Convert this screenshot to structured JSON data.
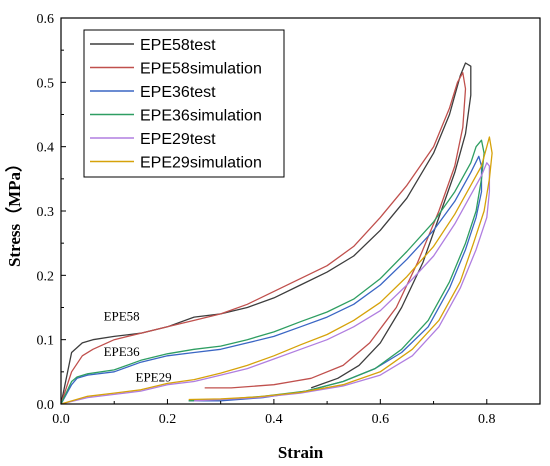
{
  "chart_data": {
    "type": "line",
    "xlabel": "Strain",
    "ylabel": "Stress（MPa）",
    "xlim": [
      0,
      0.9
    ],
    "ylim": [
      0,
      0.6
    ],
    "xticks": [
      "0.0",
      "0.2",
      "0.4",
      "0.6",
      "0.8"
    ],
    "yticks": [
      "0.0",
      "0.1",
      "0.2",
      "0.3",
      "0.4",
      "0.5",
      "0.6"
    ],
    "grid": false,
    "legend_position": "top-left",
    "annotations": [
      {
        "text": "EPE58",
        "x": 0.08,
        "y": 0.13
      },
      {
        "text": "EPE36",
        "x": 0.08,
        "y": 0.075
      },
      {
        "text": "EPE29",
        "x": 0.14,
        "y": 0.035
      }
    ],
    "series": [
      {
        "name": "EPE58test",
        "color": "#3d3d3d",
        "points": [
          [
            0,
            0
          ],
          [
            0.02,
            0.08
          ],
          [
            0.04,
            0.095
          ],
          [
            0.06,
            0.1
          ],
          [
            0.1,
            0.105
          ],
          [
            0.15,
            0.11
          ],
          [
            0.2,
            0.12
          ],
          [
            0.25,
            0.135
          ],
          [
            0.3,
            0.14
          ],
          [
            0.35,
            0.15
          ],
          [
            0.4,
            0.165
          ],
          [
            0.45,
            0.185
          ],
          [
            0.5,
            0.205
          ],
          [
            0.55,
            0.23
          ],
          [
            0.6,
            0.27
          ],
          [
            0.65,
            0.32
          ],
          [
            0.7,
            0.39
          ],
          [
            0.73,
            0.45
          ],
          [
            0.75,
            0.51
          ],
          [
            0.76,
            0.53
          ],
          [
            0.77,
            0.525
          ],
          [
            0.77,
            0.48
          ],
          [
            0.76,
            0.42
          ],
          [
            0.74,
            0.36
          ],
          [
            0.71,
            0.29
          ],
          [
            0.68,
            0.22
          ],
          [
            0.64,
            0.15
          ],
          [
            0.6,
            0.095
          ],
          [
            0.56,
            0.06
          ],
          [
            0.52,
            0.04
          ],
          [
            0.47,
            0.025
          ]
        ]
      },
      {
        "name": "EPE58simulation",
        "color": "#c0504d",
        "points": [
          [
            0,
            0
          ],
          [
            0.02,
            0.05
          ],
          [
            0.04,
            0.075
          ],
          [
            0.06,
            0.085
          ],
          [
            0.1,
            0.1
          ],
          [
            0.15,
            0.11
          ],
          [
            0.2,
            0.12
          ],
          [
            0.25,
            0.13
          ],
          [
            0.3,
            0.14
          ],
          [
            0.35,
            0.155
          ],
          [
            0.4,
            0.175
          ],
          [
            0.45,
            0.195
          ],
          [
            0.5,
            0.215
          ],
          [
            0.55,
            0.245
          ],
          [
            0.6,
            0.29
          ],
          [
            0.65,
            0.34
          ],
          [
            0.7,
            0.4
          ],
          [
            0.73,
            0.46
          ],
          [
            0.745,
            0.5
          ],
          [
            0.755,
            0.515
          ],
          [
            0.76,
            0.49
          ],
          [
            0.755,
            0.43
          ],
          [
            0.74,
            0.37
          ],
          [
            0.71,
            0.3
          ],
          [
            0.67,
            0.22
          ],
          [
            0.63,
            0.15
          ],
          [
            0.58,
            0.095
          ],
          [
            0.53,
            0.06
          ],
          [
            0.47,
            0.04
          ],
          [
            0.4,
            0.03
          ],
          [
            0.32,
            0.025
          ],
          [
            0.27,
            0.025
          ]
        ]
      },
      {
        "name": "EPE36test",
        "color": "#3a66c4",
        "points": [
          [
            0,
            0
          ],
          [
            0.02,
            0.03
          ],
          [
            0.03,
            0.04
          ],
          [
            0.05,
            0.045
          ],
          [
            0.1,
            0.05
          ],
          [
            0.15,
            0.065
          ],
          [
            0.2,
            0.075
          ],
          [
            0.25,
            0.08
          ],
          [
            0.3,
            0.085
          ],
          [
            0.35,
            0.095
          ],
          [
            0.4,
            0.105
          ],
          [
            0.45,
            0.12
          ],
          [
            0.5,
            0.135
          ],
          [
            0.55,
            0.155
          ],
          [
            0.6,
            0.185
          ],
          [
            0.65,
            0.225
          ],
          [
            0.7,
            0.27
          ],
          [
            0.74,
            0.315
          ],
          [
            0.77,
            0.36
          ],
          [
            0.785,
            0.385
          ],
          [
            0.79,
            0.37
          ],
          [
            0.79,
            0.33
          ],
          [
            0.78,
            0.29
          ],
          [
            0.76,
            0.24
          ],
          [
            0.73,
            0.18
          ],
          [
            0.69,
            0.12
          ],
          [
            0.64,
            0.08
          ],
          [
            0.59,
            0.055
          ],
          [
            0.53,
            0.035
          ],
          [
            0.46,
            0.02
          ],
          [
            0.38,
            0.01
          ],
          [
            0.3,
            0.005
          ],
          [
            0.24,
            0.005
          ]
        ]
      },
      {
        "name": "EPE36simulation",
        "color": "#2e9e62",
        "points": [
          [
            0,
            0
          ],
          [
            0.02,
            0.035
          ],
          [
            0.03,
            0.042
          ],
          [
            0.05,
            0.047
          ],
          [
            0.1,
            0.053
          ],
          [
            0.15,
            0.068
          ],
          [
            0.2,
            0.078
          ],
          [
            0.25,
            0.085
          ],
          [
            0.3,
            0.09
          ],
          [
            0.35,
            0.1
          ],
          [
            0.4,
            0.112
          ],
          [
            0.45,
            0.128
          ],
          [
            0.5,
            0.143
          ],
          [
            0.55,
            0.163
          ],
          [
            0.6,
            0.195
          ],
          [
            0.65,
            0.237
          ],
          [
            0.7,
            0.283
          ],
          [
            0.74,
            0.33
          ],
          [
            0.77,
            0.375
          ],
          [
            0.78,
            0.4
          ],
          [
            0.79,
            0.41
          ],
          [
            0.795,
            0.39
          ],
          [
            0.79,
            0.35
          ],
          [
            0.78,
            0.3
          ],
          [
            0.76,
            0.25
          ],
          [
            0.73,
            0.19
          ],
          [
            0.69,
            0.13
          ],
          [
            0.64,
            0.085
          ],
          [
            0.59,
            0.055
          ],
          [
            0.53,
            0.035
          ],
          [
            0.46,
            0.02
          ],
          [
            0.38,
            0.012
          ],
          [
            0.3,
            0.007
          ],
          [
            0.24,
            0.005
          ]
        ]
      },
      {
        "name": "EPE29test",
        "color": "#b07ee0",
        "points": [
          [
            0,
            0
          ],
          [
            0.05,
            0.01
          ],
          [
            0.1,
            0.015
          ],
          [
            0.15,
            0.02
          ],
          [
            0.2,
            0.03
          ],
          [
            0.25,
            0.035
          ],
          [
            0.3,
            0.045
          ],
          [
            0.35,
            0.055
          ],
          [
            0.4,
            0.07
          ],
          [
            0.45,
            0.085
          ],
          [
            0.5,
            0.1
          ],
          [
            0.55,
            0.12
          ],
          [
            0.6,
            0.145
          ],
          [
            0.65,
            0.185
          ],
          [
            0.7,
            0.23
          ],
          [
            0.74,
            0.28
          ],
          [
            0.77,
            0.325
          ],
          [
            0.79,
            0.355
          ],
          [
            0.8,
            0.375
          ],
          [
            0.805,
            0.37
          ],
          [
            0.805,
            0.33
          ],
          [
            0.8,
            0.29
          ],
          [
            0.78,
            0.24
          ],
          [
            0.75,
            0.18
          ],
          [
            0.71,
            0.12
          ],
          [
            0.66,
            0.075
          ],
          [
            0.6,
            0.045
          ],
          [
            0.53,
            0.028
          ],
          [
            0.45,
            0.017
          ],
          [
            0.37,
            0.01
          ],
          [
            0.3,
            0.007
          ],
          [
            0.25,
            0.005
          ]
        ]
      },
      {
        "name": "EPE29simulation",
        "color": "#d6a20a",
        "points": [
          [
            0,
            0
          ],
          [
            0.05,
            0.012
          ],
          [
            0.1,
            0.017
          ],
          [
            0.15,
            0.022
          ],
          [
            0.2,
            0.032
          ],
          [
            0.25,
            0.038
          ],
          [
            0.3,
            0.048
          ],
          [
            0.35,
            0.06
          ],
          [
            0.4,
            0.075
          ],
          [
            0.45,
            0.092
          ],
          [
            0.5,
            0.108
          ],
          [
            0.55,
            0.13
          ],
          [
            0.6,
            0.158
          ],
          [
            0.65,
            0.198
          ],
          [
            0.7,
            0.245
          ],
          [
            0.74,
            0.295
          ],
          [
            0.77,
            0.34
          ],
          [
            0.79,
            0.37
          ],
          [
            0.8,
            0.4
          ],
          [
            0.805,
            0.415
          ],
          [
            0.81,
            0.39
          ],
          [
            0.805,
            0.35
          ],
          [
            0.795,
            0.3
          ],
          [
            0.775,
            0.25
          ],
          [
            0.75,
            0.19
          ],
          [
            0.71,
            0.13
          ],
          [
            0.66,
            0.085
          ],
          [
            0.6,
            0.05
          ],
          [
            0.53,
            0.03
          ],
          [
            0.45,
            0.018
          ],
          [
            0.37,
            0.011
          ],
          [
            0.3,
            0.008
          ],
          [
            0.24,
            0.007
          ]
        ]
      }
    ]
  }
}
